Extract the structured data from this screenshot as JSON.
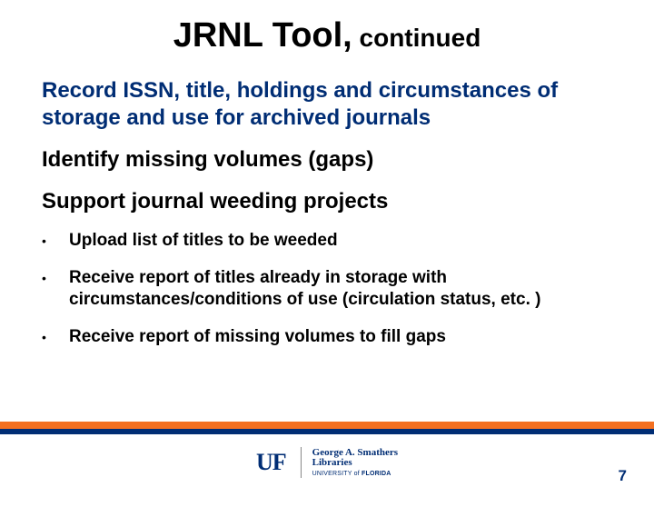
{
  "title": {
    "main": "JRNL Tool,",
    "sub": " continued"
  },
  "paragraphs": [
    {
      "text": "Record ISSN, title, holdings and circumstances of storage and use for archived journals",
      "color": "navy"
    },
    {
      "text": "Identify missing volumes (gaps)",
      "color": "black"
    },
    {
      "text": "Support journal weeding projects",
      "color": "black"
    }
  ],
  "bullets": [
    "Upload list of titles to be weeded",
    "Receive report of titles already in storage with circumstances/conditions of use (circulation status, etc. )",
    "Receive report of missing volumes to fill gaps"
  ],
  "divider": {
    "orange": "#f37021",
    "blue": "#002d74"
  },
  "logo": {
    "uf": "UF",
    "line1": "George A. Smathers",
    "line2": "Libraries",
    "line3_prefix": "UNIVERSITY of ",
    "line3_bold": "FLORIDA"
  },
  "page_number": "7",
  "colors": {
    "navy": "#002d74",
    "orange": "#f37021",
    "black": "#000000",
    "bg": "#ffffff"
  }
}
